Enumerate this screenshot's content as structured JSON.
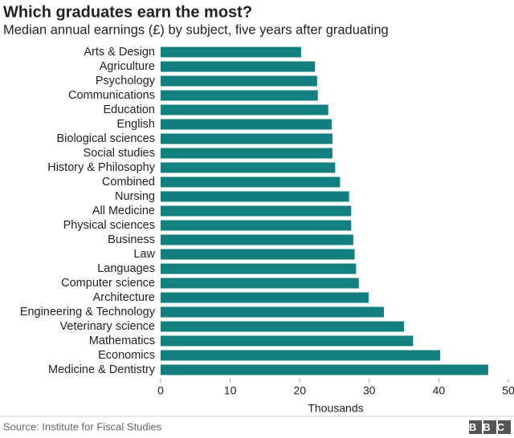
{
  "chart_data": {
    "type": "hbar",
    "title": "Which graduates earn the most?",
    "subtitle": "Median annual earnings (£) by subject, five years after graduating",
    "x_label": "Thousands",
    "source": "Source: Institute for Fiscal Studies",
    "logo": "BBC",
    "color": "#147f80",
    "grid": false,
    "categories": [
      "Arts & Design",
      "Agriculture",
      "Psychology",
      "Communications",
      "Education",
      "English",
      "Biological sciences",
      "Social studies",
      "History & Philosophy",
      "Combined",
      "Nursing",
      "All Medicine",
      "Physical sciences",
      "Business",
      "Law",
      "Languages",
      "Computer science",
      "Architecture",
      "Engineering & Technology",
      "Veterinary science",
      "Mathematics",
      "Economics",
      "Medicine & Dentistry"
    ],
    "values": [
      20.2,
      22.2,
      22.5,
      22.6,
      24.1,
      24.6,
      24.7,
      24.7,
      25.1,
      25.8,
      27.1,
      27.4,
      27.4,
      27.7,
      27.9,
      28.1,
      28.5,
      29.9,
      32.1,
      35.0,
      36.3,
      40.2,
      47.1
    ],
    "xlim": [
      0,
      50
    ],
    "xticks": [
      0,
      10,
      20,
      30,
      40,
      50
    ]
  }
}
